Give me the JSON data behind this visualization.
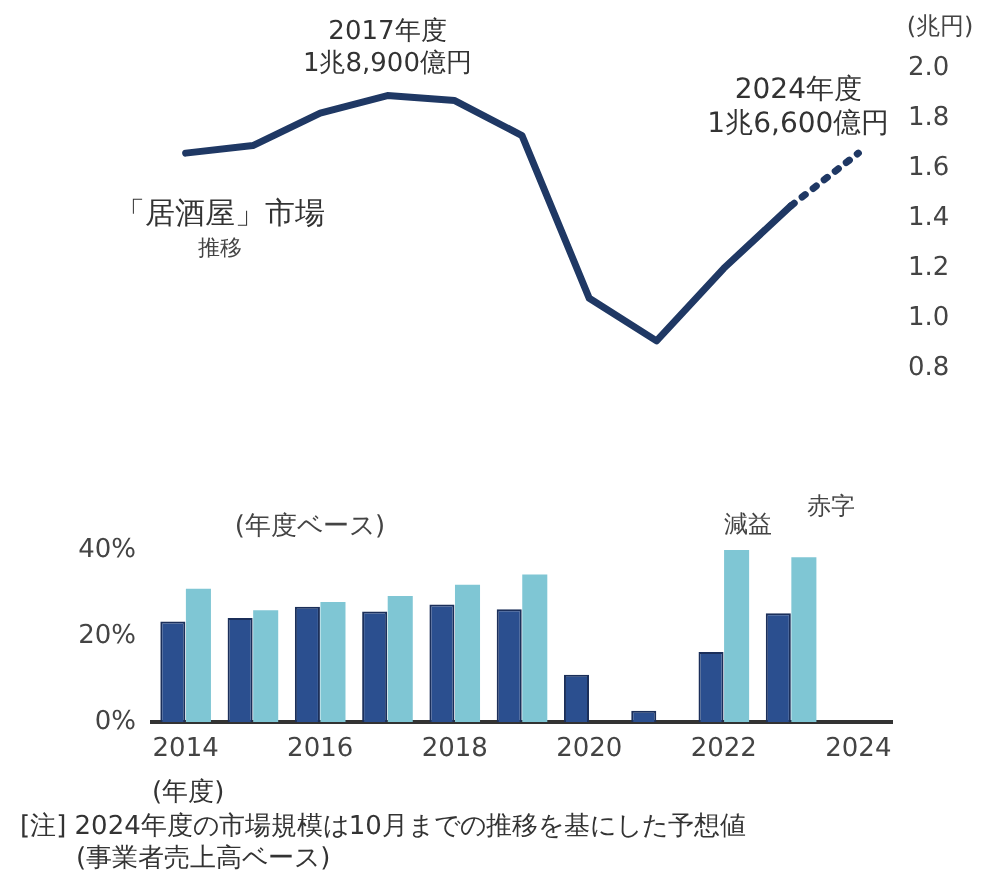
{
  "chart_data": [
    {
      "type": "line",
      "title": "「居酒屋」市場",
      "subtitle": "推移",
      "ylabel": "(兆円)",
      "categories": [
        "2014",
        null,
        "2016",
        null,
        "2018",
        null,
        "2020",
        null,
        "2022",
        null,
        "2024"
      ],
      "series": [
        {
          "color": "#1f3864",
          "line_style": "solid",
          "values": [
            1.66,
            1.69,
            1.82,
            1.89,
            1.87,
            1.73,
            1.08,
            0.91,
            1.2,
            1.45,
            null
          ]
        },
        {
          "color": "#1f3864",
          "line_style": "dotted",
          "values": [
            null,
            null,
            null,
            null,
            null,
            null,
            null,
            null,
            null,
            1.45,
            1.66
          ]
        }
      ],
      "ylim": [
        0.8,
        2.0
      ],
      "yticks": [
        0.8,
        {
          "value": 1,
          "label": "1.0"
        },
        1.2,
        1.4,
        1.6,
        1.8,
        {
          "value": 2,
          "label": "2.0"
        }
      ],
      "tick_labels": "y",
      "grid": false,
      "marker": "none",
      "annotations": [
        "2017年度\n1兆8,900億円",
        "2024年度\n1兆6,600億円"
      ]
    },
    {
      "type": "bar",
      "categories": [
        "2014",
        null,
        "2016",
        null,
        "2018",
        null,
        "2020",
        null,
        "2022",
        null,
        "2024"
      ],
      "series": [
        {
          "color": "#2b4f8f",
          "values": [
            23.4,
            24.2,
            26.8,
            25.7,
            27.3,
            26.2,
            11,
            2.6,
            16.3,
            25.3,
            null
          ]
        },
        {
          "color": "#7fc6d4",
          "values": [
            31,
            26,
            27.9,
            29.3,
            31.9,
            34.3,
            null,
            null,
            40,
            38.3,
            null
          ]
        }
      ],
      "ylim": [
        0,
        40
      ],
      "yticks": [
        {
          "value": 0,
          "label": "0%"
        },
        {
          "value": 20,
          "label": "20%"
        },
        {
          "value": 40,
          "label": "40%"
        }
      ],
      "grid": false,
      "xlabel": "(年度)",
      "annotations": [
        "(年度ベース)",
        "減益",
        "赤字",
        "[注] 2024年度の市場規模は10月までの推移を基にした予想値",
        "(事業者売上高ベース)"
      ]
    }
  ]
}
